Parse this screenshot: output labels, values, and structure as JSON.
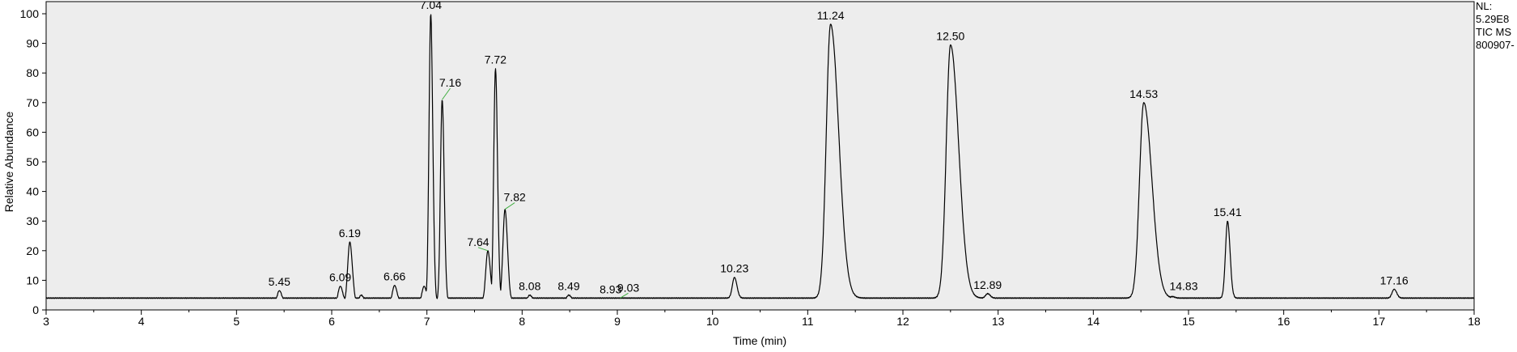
{
  "info": {
    "nl_label": "NL:",
    "nl_value": "5.29E8",
    "trace": "TIC  MS",
    "file": "800907-"
  },
  "chart_data": {
    "type": "line",
    "title": "",
    "xlabel": "Time (min)",
    "ylabel": "Relative Abundance",
    "xlim": [
      3,
      18
    ],
    "ylim": [
      0,
      100
    ],
    "x_ticks": [
      3,
      4,
      5,
      6,
      7,
      8,
      9,
      10,
      11,
      12,
      13,
      14,
      15,
      16,
      17,
      18
    ],
    "y_ticks": [
      0,
      10,
      20,
      30,
      40,
      50,
      60,
      70,
      80,
      90,
      100
    ],
    "grid": false,
    "line_color": "#000000",
    "annotation_leader_color": "#3fae3f",
    "baseline": 2.4,
    "peaks": [
      {
        "x": 3.02,
        "y": 3.0
      },
      {
        "x": 3.8,
        "y": 2.8
      },
      {
        "x": 4.3,
        "y": 2.9
      },
      {
        "x": 4.7,
        "y": 3.6
      },
      {
        "x": 5.17,
        "y": 2.7
      },
      {
        "x": 5.45,
        "y": 6.5,
        "label": "5.45"
      },
      {
        "x": 6.09,
        "y": 8.0,
        "label": "6.09"
      },
      {
        "x": 6.19,
        "y": 23.0,
        "label": "6.19"
      },
      {
        "x": 6.31,
        "y": 5.0
      },
      {
        "x": 6.66,
        "y": 8.3,
        "label": "6.66"
      },
      {
        "x": 6.97,
        "y": 8.0
      },
      {
        "x": 7.04,
        "y": 100.0,
        "label": "7.04"
      },
      {
        "x": 7.16,
        "y": 71.0,
        "label": "7.16"
      },
      {
        "x": 7.64,
        "y": 20.0,
        "label": "7.64"
      },
      {
        "x": 7.72,
        "y": 81.5,
        "label": "7.72"
      },
      {
        "x": 7.82,
        "y": 34.0,
        "label": "7.82"
      },
      {
        "x": 8.08,
        "y": 5.0,
        "label": "8.08"
      },
      {
        "x": 8.49,
        "y": 5.0,
        "label": "8.49"
      },
      {
        "x": 8.93,
        "y": 4.0,
        "label": "8.93"
      },
      {
        "x": 9.03,
        "y": 4.0,
        "label": "9.03"
      },
      {
        "x": 9.44,
        "y": 3.9
      },
      {
        "x": 10.23,
        "y": 11.0,
        "label": "10.23"
      },
      {
        "x": 11.24,
        "y": 96.5,
        "label": "11.24"
      },
      {
        "x": 12.5,
        "y": 89.5,
        "label": "12.50"
      },
      {
        "x": 12.89,
        "y": 5.5,
        "label": "12.89"
      },
      {
        "x": 14.53,
        "y": 70.0,
        "label": "14.53"
      },
      {
        "x": 14.83,
        "y": 4.5,
        "label": "14.83"
      },
      {
        "x": 15.41,
        "y": 30.0,
        "label": "15.41"
      },
      {
        "x": 17.16,
        "y": 7.0,
        "label": "17.16"
      }
    ]
  }
}
